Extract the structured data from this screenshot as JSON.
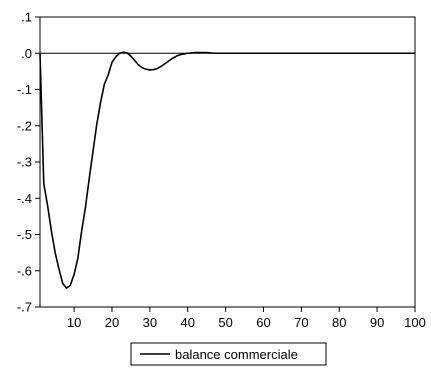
{
  "chart_data": {
    "type": "line",
    "title": "",
    "xlabel": "",
    "ylabel": "",
    "xlim": [
      1,
      100
    ],
    "ylim": [
      -0.7,
      0.1
    ],
    "x_ticks": [
      10,
      20,
      30,
      40,
      50,
      60,
      70,
      80,
      90,
      100
    ],
    "x_tick_labels": [
      "10",
      "20",
      "30",
      "40",
      "50",
      "60",
      "70",
      "80",
      "90",
      "100"
    ],
    "y_ticks": [
      0.1,
      0.0,
      -0.1,
      -0.2,
      -0.3,
      -0.4,
      -0.5,
      -0.6,
      -0.7
    ],
    "y_tick_labels": [
      ".1",
      ".0",
      "-.1",
      "-.2",
      "-.3",
      "-.4",
      "-.5",
      "-.6",
      "-.7"
    ],
    "grid": false,
    "zero_line": true,
    "legend": {
      "position": "bottom-center",
      "entries": [
        "balance commerciale"
      ]
    },
    "colors": {
      "series": "#000000",
      "axis": "#000000",
      "background": "#ffffff"
    },
    "series": [
      {
        "name": "balance commerciale",
        "x": [
          1,
          2,
          3,
          4,
          5,
          6,
          7,
          8,
          9,
          10,
          11,
          12,
          13,
          14,
          15,
          16,
          17,
          18,
          19,
          20,
          21,
          22,
          23,
          24,
          25,
          26,
          27,
          28,
          29,
          30,
          31,
          32,
          33,
          34,
          35,
          36,
          37,
          38,
          39,
          40,
          41,
          42,
          43,
          44,
          45,
          46,
          47,
          48,
          49,
          50,
          55,
          60,
          65,
          70,
          75,
          80,
          85,
          90,
          95,
          100
        ],
        "values": [
          0.0,
          -0.36,
          -0.42,
          -0.49,
          -0.55,
          -0.595,
          -0.635,
          -0.648,
          -0.64,
          -0.61,
          -0.565,
          -0.49,
          -0.425,
          -0.345,
          -0.27,
          -0.195,
          -0.135,
          -0.085,
          -0.06,
          -0.025,
          -0.01,
          0.0,
          0.003,
          0.001,
          -0.008,
          -0.02,
          -0.032,
          -0.04,
          -0.044,
          -0.046,
          -0.045,
          -0.042,
          -0.036,
          -0.029,
          -0.021,
          -0.014,
          -0.008,
          -0.004,
          -0.002,
          0.0,
          0.001,
          0.002,
          0.002,
          0.002,
          0.002,
          0.001,
          0.0,
          0.0,
          0.0,
          0.0,
          0.0,
          0.0,
          0.0,
          0.0,
          0.0,
          0.0,
          0.0,
          0.0,
          0.0,
          0.0
        ]
      }
    ]
  }
}
